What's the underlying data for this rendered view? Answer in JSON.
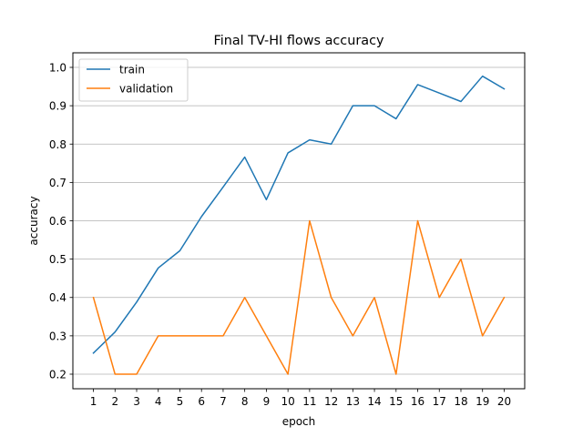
{
  "chart_data": {
    "type": "line",
    "title": "Final TV-HI flows accuracy",
    "xlabel": "epoch",
    "ylabel": "accuracy",
    "x": [
      1,
      2,
      3,
      4,
      5,
      6,
      7,
      8,
      9,
      10,
      11,
      12,
      13,
      14,
      15,
      16,
      17,
      18,
      19,
      20
    ],
    "x_ticks": [
      "1",
      "2",
      "3",
      "4",
      "5",
      "6",
      "7",
      "8",
      "9",
      "10",
      "11",
      "12",
      "13",
      "14",
      "15",
      "16",
      "17",
      "18",
      "19",
      "20"
    ],
    "y_ticks": [
      "0.2",
      "0.3",
      "0.4",
      "0.5",
      "0.6",
      "0.7",
      "0.8",
      "0.9",
      "1.0"
    ],
    "y_tick_values": [
      0.2,
      0.3,
      0.4,
      0.5,
      0.6,
      0.7,
      0.8,
      0.9,
      1.0
    ],
    "xlim": [
      0.05,
      20.95
    ],
    "ylim": [
      0.162,
      1.038
    ],
    "grid": "horizontal",
    "legend_position": "top-left",
    "series": [
      {
        "name": "train",
        "color": "#1f77b4",
        "values": [
          0.255,
          0.31,
          0.388,
          0.477,
          0.522,
          0.611,
          0.688,
          0.766,
          0.655,
          0.777,
          0.811,
          0.8,
          0.9,
          0.9,
          0.866,
          0.955,
          0.933,
          0.911,
          0.977,
          0.944
        ]
      },
      {
        "name": "validation",
        "color": "#ff7f0e",
        "values": [
          0.4,
          0.2,
          0.2,
          0.3,
          0.3,
          0.3,
          0.3,
          0.4,
          0.3,
          0.2,
          0.6,
          0.4,
          0.3,
          0.4,
          0.2,
          0.6,
          0.4,
          0.5,
          0.3,
          0.4
        ]
      }
    ]
  }
}
